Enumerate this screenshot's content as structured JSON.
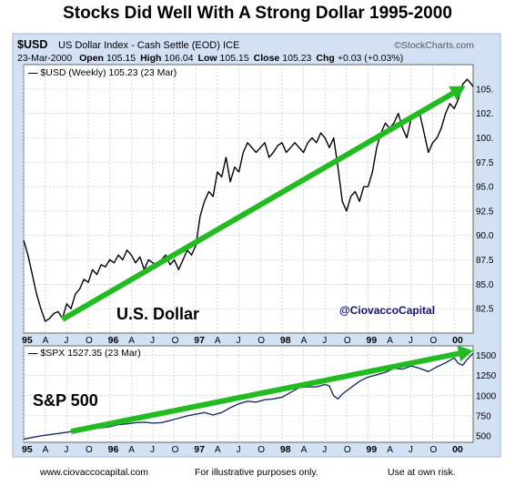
{
  "page": {
    "title": "Stocks Did Well With A Strong Dollar 1995-2000",
    "footer_left": "www.ciovaccocapital.com",
    "footer_center": "For illustrative purposes only.",
    "footer_right": "Use at own risk."
  },
  "header": {
    "symbol": "$USD",
    "description": "US Dollar Index - Cash Settle (EOD)",
    "exchange": "ICE",
    "source": "©StockCharts.com",
    "date": "23-Mar-2000",
    "open_label": "Open",
    "open": "105.15",
    "high_label": "High",
    "high": "106.04",
    "low_label": "Low",
    "low": "105.15",
    "close_label": "Close",
    "close": "105.23",
    "chg_label": "Chg",
    "chg": "+0.03 (+0.03%)"
  },
  "colors": {
    "panel_bg": "#d2e2f4",
    "plot_bg": "#ffffff",
    "grid": "#c8c8c8",
    "usd_line": "#000000",
    "spx_line": "#1a2f63",
    "arrow": "#22bb22"
  },
  "chart_data": [
    {
      "type": "line",
      "legend": "$USD (Weekly) 105.23 (23 Mar)",
      "annotation": "U.S. Dollar",
      "watermark": "@CiovaccoCapital",
      "arrow": {
        "from": [
          1995.45,
          81.4
        ],
        "to": [
          2000.13,
          105.3
        ]
      },
      "ylim": [
        80,
        107.5
      ],
      "yticks": [
        82.5,
        85.0,
        87.5,
        90.0,
        92.5,
        95.0,
        97.5,
        100.0,
        102.5,
        105.0
      ],
      "ytick_labels": [
        "82.5",
        "85.0",
        "87.5",
        "90.0",
        "92.5",
        "95.0",
        "97.5",
        "100.",
        "102.",
        "105."
      ],
      "series": [
        {
          "x": [
            1995.0,
            1995.05,
            1995.1,
            1995.15,
            1995.2,
            1995.25,
            1995.3,
            1995.35,
            1995.4,
            1995.45,
            1995.5,
            1995.55,
            1995.6,
            1995.65,
            1995.7,
            1995.75,
            1995.8,
            1995.85,
            1995.9,
            1995.95,
            1996.0,
            1996.05,
            1996.1,
            1996.15,
            1996.2,
            1996.25,
            1996.3,
            1996.35,
            1996.4,
            1996.45,
            1996.5,
            1996.55,
            1996.6,
            1996.65,
            1996.7,
            1996.75,
            1996.8,
            1996.85,
            1996.9,
            1996.95,
            1997.0,
            1997.05,
            1997.1,
            1997.15,
            1997.2,
            1997.25,
            1997.3,
            1997.35,
            1997.4,
            1997.45,
            1997.5,
            1997.55,
            1997.6,
            1997.65,
            1997.7,
            1997.75,
            1997.8,
            1997.85,
            1997.9,
            1997.95,
            1998.0,
            1998.05,
            1998.1,
            1998.15,
            1998.2,
            1998.25,
            1998.3,
            1998.35,
            1998.4,
            1998.45,
            1998.5,
            1998.55,
            1998.6,
            1998.65,
            1998.7,
            1998.75,
            1998.8,
            1998.85,
            1998.9,
            1998.95,
            1999.0,
            1999.05,
            1999.1,
            1999.15,
            1999.2,
            1999.25,
            1999.3,
            1999.35,
            1999.4,
            1999.45,
            1999.5,
            1999.55,
            1999.6,
            1999.65,
            1999.7,
            1999.75,
            1999.8,
            1999.85,
            1999.9,
            1999.95,
            2000.0,
            2000.05,
            2000.1,
            2000.15,
            2000.2,
            2000.22
          ],
          "y": [
            89.5,
            88.0,
            86.0,
            84.0,
            82.5,
            81.2,
            81.5,
            82.0,
            82.2,
            81.5,
            83.0,
            82.5,
            84.0,
            84.5,
            85.5,
            85.2,
            86.5,
            86.0,
            87.0,
            86.8,
            87.5,
            87.2,
            88.0,
            87.5,
            88.5,
            88.0,
            87.2,
            87.8,
            86.5,
            87.5,
            87.2,
            87.0,
            87.5,
            88.0,
            87.0,
            87.5,
            86.5,
            87.5,
            88.5,
            88.0,
            89.0,
            92.0,
            93.5,
            94.5,
            94.0,
            96.5,
            96.0,
            98.0,
            95.5,
            97.0,
            96.5,
            98.5,
            99.5,
            99.0,
            98.5,
            99.0,
            99.5,
            98.0,
            98.5,
            99.2,
            99.5,
            98.5,
            99.0,
            99.5,
            99.0,
            98.5,
            99.5,
            100.0,
            99.5,
            100.5,
            100.0,
            99.0,
            100.0,
            97.0,
            93.5,
            92.5,
            94.0,
            94.5,
            93.5,
            95.0,
            95.0,
            96.5,
            99.0,
            100.5,
            101.5,
            101.0,
            101.5,
            102.5,
            101.0,
            100.0,
            102.0,
            102.5,
            102.5,
            100.5,
            98.5,
            99.5,
            100.0,
            101.0,
            102.5,
            103.5,
            103.0,
            104.0,
            105.5,
            106.0,
            105.5,
            105.23
          ]
        }
      ]
    },
    {
      "type": "line",
      "legend": "$SPX 1527.35 (23 Mar)",
      "annotation": "S&P 500",
      "arrow": {
        "from": [
          1995.55,
          555
        ],
        "to": [
          2000.22,
          1560
        ]
      },
      "ylim": [
        420,
        1620
      ],
      "yticks": [
        500,
        750,
        1000,
        1250,
        1500
      ],
      "ytick_labels": [
        "500",
        "750",
        "1000",
        "1250",
        "1500"
      ],
      "series": [
        {
          "x": [
            1995.0,
            1995.1,
            1995.2,
            1995.3,
            1995.4,
            1995.5,
            1995.6,
            1995.7,
            1995.8,
            1995.9,
            1996.0,
            1996.1,
            1996.2,
            1996.3,
            1996.4,
            1996.5,
            1996.6,
            1996.7,
            1996.8,
            1996.9,
            1997.0,
            1997.1,
            1997.2,
            1997.3,
            1997.4,
            1997.5,
            1997.6,
            1997.7,
            1997.8,
            1997.9,
            1998.0,
            1998.1,
            1998.2,
            1998.3,
            1998.4,
            1998.5,
            1998.55,
            1998.6,
            1998.65,
            1998.7,
            1998.8,
            1998.9,
            1999.0,
            1999.1,
            1999.2,
            1999.3,
            1999.4,
            1999.5,
            1999.6,
            1999.7,
            1999.8,
            1999.9,
            2000.0,
            2000.05,
            2000.1,
            2000.15,
            2000.22
          ],
          "y": [
            460,
            480,
            500,
            515,
            530,
            545,
            560,
            575,
            590,
            600,
            615,
            640,
            650,
            665,
            670,
            660,
            665,
            690,
            720,
            750,
            770,
            790,
            760,
            790,
            850,
            900,
            930,
            920,
            950,
            960,
            980,
            1040,
            1100,
            1110,
            1110,
            1140,
            1120,
            1000,
            960,
            1020,
            1100,
            1180,
            1230,
            1260,
            1290,
            1340,
            1330,
            1370,
            1340,
            1300,
            1360,
            1410,
            1470,
            1400,
            1380,
            1450,
            1527.35
          ]
        }
      ]
    }
  ],
  "x_axis": {
    "year_ticks": [
      1995,
      1996,
      1997,
      1998,
      1999,
      2000
    ],
    "year_labels": [
      "95",
      "96",
      "97",
      "98",
      "99",
      "00"
    ],
    "month_ticks": [
      1995.25,
      1995.5,
      1995.75,
      1996.25,
      1996.5,
      1996.75,
      1997.25,
      1997.5,
      1997.75,
      1998.25,
      1998.5,
      1998.75,
      1999.25,
      1999.5,
      1999.75
    ],
    "month_labels": [
      "A",
      "J",
      "O",
      "A",
      "J",
      "O",
      "A",
      "J",
      "O",
      "A",
      "J",
      "O",
      "A",
      "J",
      "O"
    ],
    "xlim": [
      1995.0,
      2000.22
    ]
  }
}
